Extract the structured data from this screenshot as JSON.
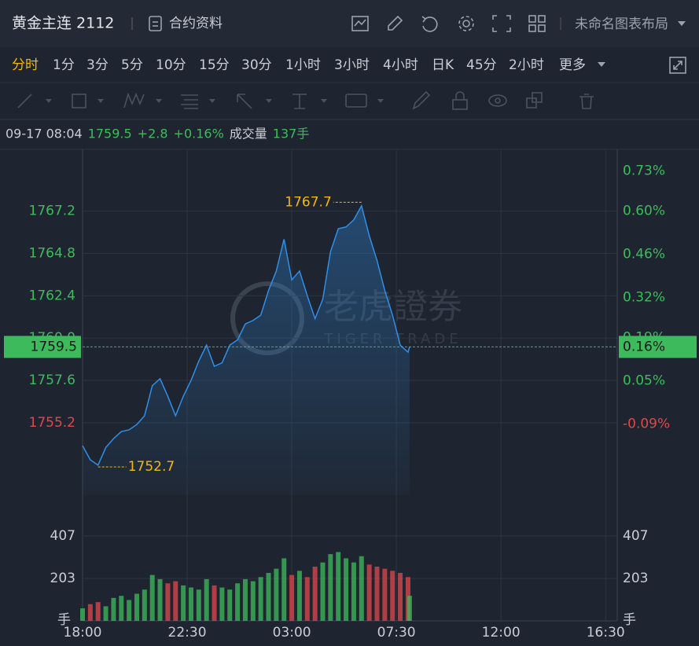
{
  "header": {
    "title": "黄金主连 2112",
    "contract_info": "合约资料",
    "layout_name": "未命名图表布局"
  },
  "timeframes": [
    "分时",
    "1分",
    "3分",
    "5分",
    "10分",
    "15分",
    "30分",
    "1小时",
    "3小时",
    "4小时",
    "日K",
    "45分",
    "2小时"
  ],
  "active_timeframe": 0,
  "more": "更多",
  "quote": {
    "time": "09-17 08:04",
    "price": 1759.5,
    "change": "+2.8",
    "change_pct": "+0.16%",
    "volume_label": "成交量",
    "volume": "137手"
  },
  "watermark": {
    "cn": "老虎證券",
    "en": "TIGER TRADE"
  },
  "chart_data": [
    {
      "type": "line",
      "color": "#2f8fe8",
      "up_color": "#3dbb5c",
      "down_color": "#e0474c",
      "x": [
        "18:00",
        "18:20",
        "18:40",
        "19:00",
        "19:20",
        "19:40",
        "20:00",
        "20:20",
        "20:40",
        "21:00",
        "21:20",
        "21:40",
        "22:00",
        "22:20",
        "22:40",
        "23:00",
        "23:20",
        "23:40",
        "00:00",
        "00:20",
        "00:40",
        "01:00",
        "01:20",
        "01:40",
        "02:00",
        "02:20",
        "02:40",
        "03:00",
        "03:20",
        "03:40",
        "04:00",
        "04:20",
        "04:40",
        "05:00",
        "05:20",
        "05:40",
        "06:00",
        "06:20",
        "06:40",
        "07:00",
        "07:20",
        "07:40",
        "08:00",
        "08:04"
      ],
      "values": [
        1753.9,
        1753.1,
        1752.8,
        1753.8,
        1754.3,
        1754.7,
        1754.8,
        1755.1,
        1755.6,
        1757.3,
        1757.7,
        1756.7,
        1755.6,
        1756.7,
        1757.6,
        1758.7,
        1759.6,
        1758.4,
        1758.6,
        1759.6,
        1759.9,
        1760.8,
        1761.0,
        1761.3,
        1762.7,
        1763.8,
        1765.6,
        1763.3,
        1763.8,
        1762.4,
        1761.1,
        1762.2,
        1764.9,
        1766.2,
        1766.3,
        1766.7,
        1767.5,
        1765.8,
        1764.4,
        1762.7,
        1761.3,
        1759.6,
        1759.2,
        1759.5
      ],
      "xlim": [
        "18:00",
        "17:00"
      ],
      "xticks": [
        "18:00",
        "22:30",
        "03:00",
        "07:30",
        "12:00",
        "16:30"
      ],
      "ylim": [
        1751.1,
        1770.7
      ],
      "yticks": [
        1755.2,
        1757.6,
        {
          "value": 1760,
          "label": "1760.0"
        },
        1762.4,
        1764.8,
        1767.2
      ],
      "y2lim": [
        -0.32,
        0.8
      ],
      "y2ticks": [
        {
          "value": -0.09,
          "label": "-0.09%"
        },
        {
          "value": 0.05,
          "label": "0.05%"
        },
        {
          "value": 0.19,
          "label": "0.19%"
        },
        {
          "value": 0.32,
          "label": "0.32%"
        },
        {
          "value": 0.46,
          "label": "0.46%"
        },
        {
          "value": 0.6,
          "label": "0.60%"
        },
        {
          "value": 0.73,
          "label": "0.73%"
        }
      ],
      "annotations": [
        {
          "value": 1767.7,
          "x": "06:00"
        },
        {
          "value": 1752.7,
          "x": "18:40"
        }
      ],
      "last": {
        "value": 1759.5,
        "pct": {
          "value": 0.16,
          "label": "0.16%"
        }
      },
      "grid": true
    },
    {
      "type": "bar",
      "unit": "手",
      "ylim": [
        0,
        603
      ],
      "yticks": [
        203,
        407
      ],
      "values": [
        60,
        80,
        90,
        70,
        110,
        120,
        100,
        130,
        150,
        220,
        200,
        180,
        190,
        170,
        160,
        150,
        200,
        170,
        160,
        150,
        180,
        200,
        190,
        210,
        230,
        250,
        300,
        220,
        240,
        210,
        260,
        280,
        320,
        330,
        300,
        280,
        310,
        270,
        260,
        250,
        240,
        230,
        210,
        120
      ]
    }
  ]
}
